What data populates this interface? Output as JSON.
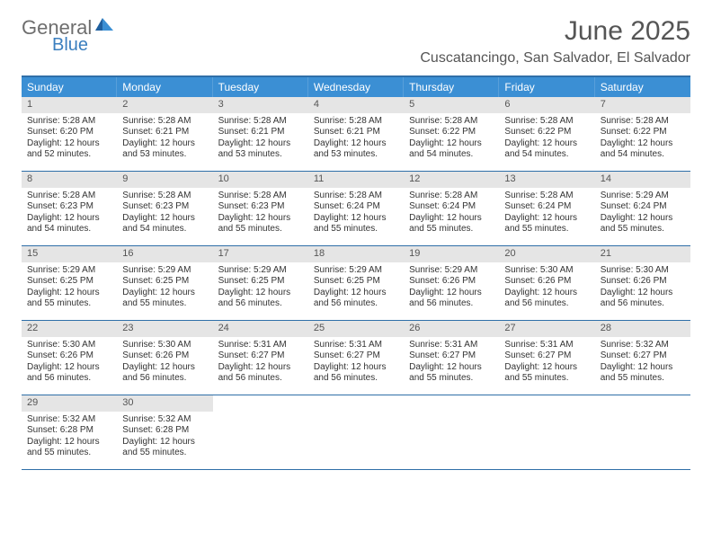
{
  "logo": {
    "text1": "General",
    "text2": "Blue"
  },
  "title": "June 2025",
  "location": "Cuscatancingo, San Salvador, El Salvador",
  "colors": {
    "header_blue": "#3b8fd4",
    "rule_blue": "#2f6fa8",
    "daynum_bg": "#e5e5e5",
    "text": "#333333",
    "logo_gray": "#6e6e6e",
    "logo_blue": "#3b7fbf"
  },
  "typography": {
    "title_fontsize": 30,
    "location_fontsize": 16,
    "dow_fontsize": 12,
    "daynum_fontsize": 11,
    "body_fontsize": 10
  },
  "days_of_week": [
    "Sunday",
    "Monday",
    "Tuesday",
    "Wednesday",
    "Thursday",
    "Friday",
    "Saturday"
  ],
  "weeks": [
    [
      {
        "num": "1",
        "sunrise": "5:28 AM",
        "sunset": "6:20 PM",
        "daylight": "12 hours and 52 minutes."
      },
      {
        "num": "2",
        "sunrise": "5:28 AM",
        "sunset": "6:21 PM",
        "daylight": "12 hours and 53 minutes."
      },
      {
        "num": "3",
        "sunrise": "5:28 AM",
        "sunset": "6:21 PM",
        "daylight": "12 hours and 53 minutes."
      },
      {
        "num": "4",
        "sunrise": "5:28 AM",
        "sunset": "6:21 PM",
        "daylight": "12 hours and 53 minutes."
      },
      {
        "num": "5",
        "sunrise": "5:28 AM",
        "sunset": "6:22 PM",
        "daylight": "12 hours and 54 minutes."
      },
      {
        "num": "6",
        "sunrise": "5:28 AM",
        "sunset": "6:22 PM",
        "daylight": "12 hours and 54 minutes."
      },
      {
        "num": "7",
        "sunrise": "5:28 AM",
        "sunset": "6:22 PM",
        "daylight": "12 hours and 54 minutes."
      }
    ],
    [
      {
        "num": "8",
        "sunrise": "5:28 AM",
        "sunset": "6:23 PM",
        "daylight": "12 hours and 54 minutes."
      },
      {
        "num": "9",
        "sunrise": "5:28 AM",
        "sunset": "6:23 PM",
        "daylight": "12 hours and 54 minutes."
      },
      {
        "num": "10",
        "sunrise": "5:28 AM",
        "sunset": "6:23 PM",
        "daylight": "12 hours and 55 minutes."
      },
      {
        "num": "11",
        "sunrise": "5:28 AM",
        "sunset": "6:24 PM",
        "daylight": "12 hours and 55 minutes."
      },
      {
        "num": "12",
        "sunrise": "5:28 AM",
        "sunset": "6:24 PM",
        "daylight": "12 hours and 55 minutes."
      },
      {
        "num": "13",
        "sunrise": "5:28 AM",
        "sunset": "6:24 PM",
        "daylight": "12 hours and 55 minutes."
      },
      {
        "num": "14",
        "sunrise": "5:29 AM",
        "sunset": "6:24 PM",
        "daylight": "12 hours and 55 minutes."
      }
    ],
    [
      {
        "num": "15",
        "sunrise": "5:29 AM",
        "sunset": "6:25 PM",
        "daylight": "12 hours and 55 minutes."
      },
      {
        "num": "16",
        "sunrise": "5:29 AM",
        "sunset": "6:25 PM",
        "daylight": "12 hours and 55 minutes."
      },
      {
        "num": "17",
        "sunrise": "5:29 AM",
        "sunset": "6:25 PM",
        "daylight": "12 hours and 56 minutes."
      },
      {
        "num": "18",
        "sunrise": "5:29 AM",
        "sunset": "6:25 PM",
        "daylight": "12 hours and 56 minutes."
      },
      {
        "num": "19",
        "sunrise": "5:29 AM",
        "sunset": "6:26 PM",
        "daylight": "12 hours and 56 minutes."
      },
      {
        "num": "20",
        "sunrise": "5:30 AM",
        "sunset": "6:26 PM",
        "daylight": "12 hours and 56 minutes."
      },
      {
        "num": "21",
        "sunrise": "5:30 AM",
        "sunset": "6:26 PM",
        "daylight": "12 hours and 56 minutes."
      }
    ],
    [
      {
        "num": "22",
        "sunrise": "5:30 AM",
        "sunset": "6:26 PM",
        "daylight": "12 hours and 56 minutes."
      },
      {
        "num": "23",
        "sunrise": "5:30 AM",
        "sunset": "6:26 PM",
        "daylight": "12 hours and 56 minutes."
      },
      {
        "num": "24",
        "sunrise": "5:31 AM",
        "sunset": "6:27 PM",
        "daylight": "12 hours and 56 minutes."
      },
      {
        "num": "25",
        "sunrise": "5:31 AM",
        "sunset": "6:27 PM",
        "daylight": "12 hours and 56 minutes."
      },
      {
        "num": "26",
        "sunrise": "5:31 AM",
        "sunset": "6:27 PM",
        "daylight": "12 hours and 55 minutes."
      },
      {
        "num": "27",
        "sunrise": "5:31 AM",
        "sunset": "6:27 PM",
        "daylight": "12 hours and 55 minutes."
      },
      {
        "num": "28",
        "sunrise": "5:32 AM",
        "sunset": "6:27 PM",
        "daylight": "12 hours and 55 minutes."
      }
    ],
    [
      {
        "num": "29",
        "sunrise": "5:32 AM",
        "sunset": "6:28 PM",
        "daylight": "12 hours and 55 minutes."
      },
      {
        "num": "30",
        "sunrise": "5:32 AM",
        "sunset": "6:28 PM",
        "daylight": "12 hours and 55 minutes."
      },
      null,
      null,
      null,
      null,
      null
    ]
  ],
  "labels": {
    "sunrise": "Sunrise: ",
    "sunset": "Sunset: ",
    "daylight": "Daylight: "
  }
}
